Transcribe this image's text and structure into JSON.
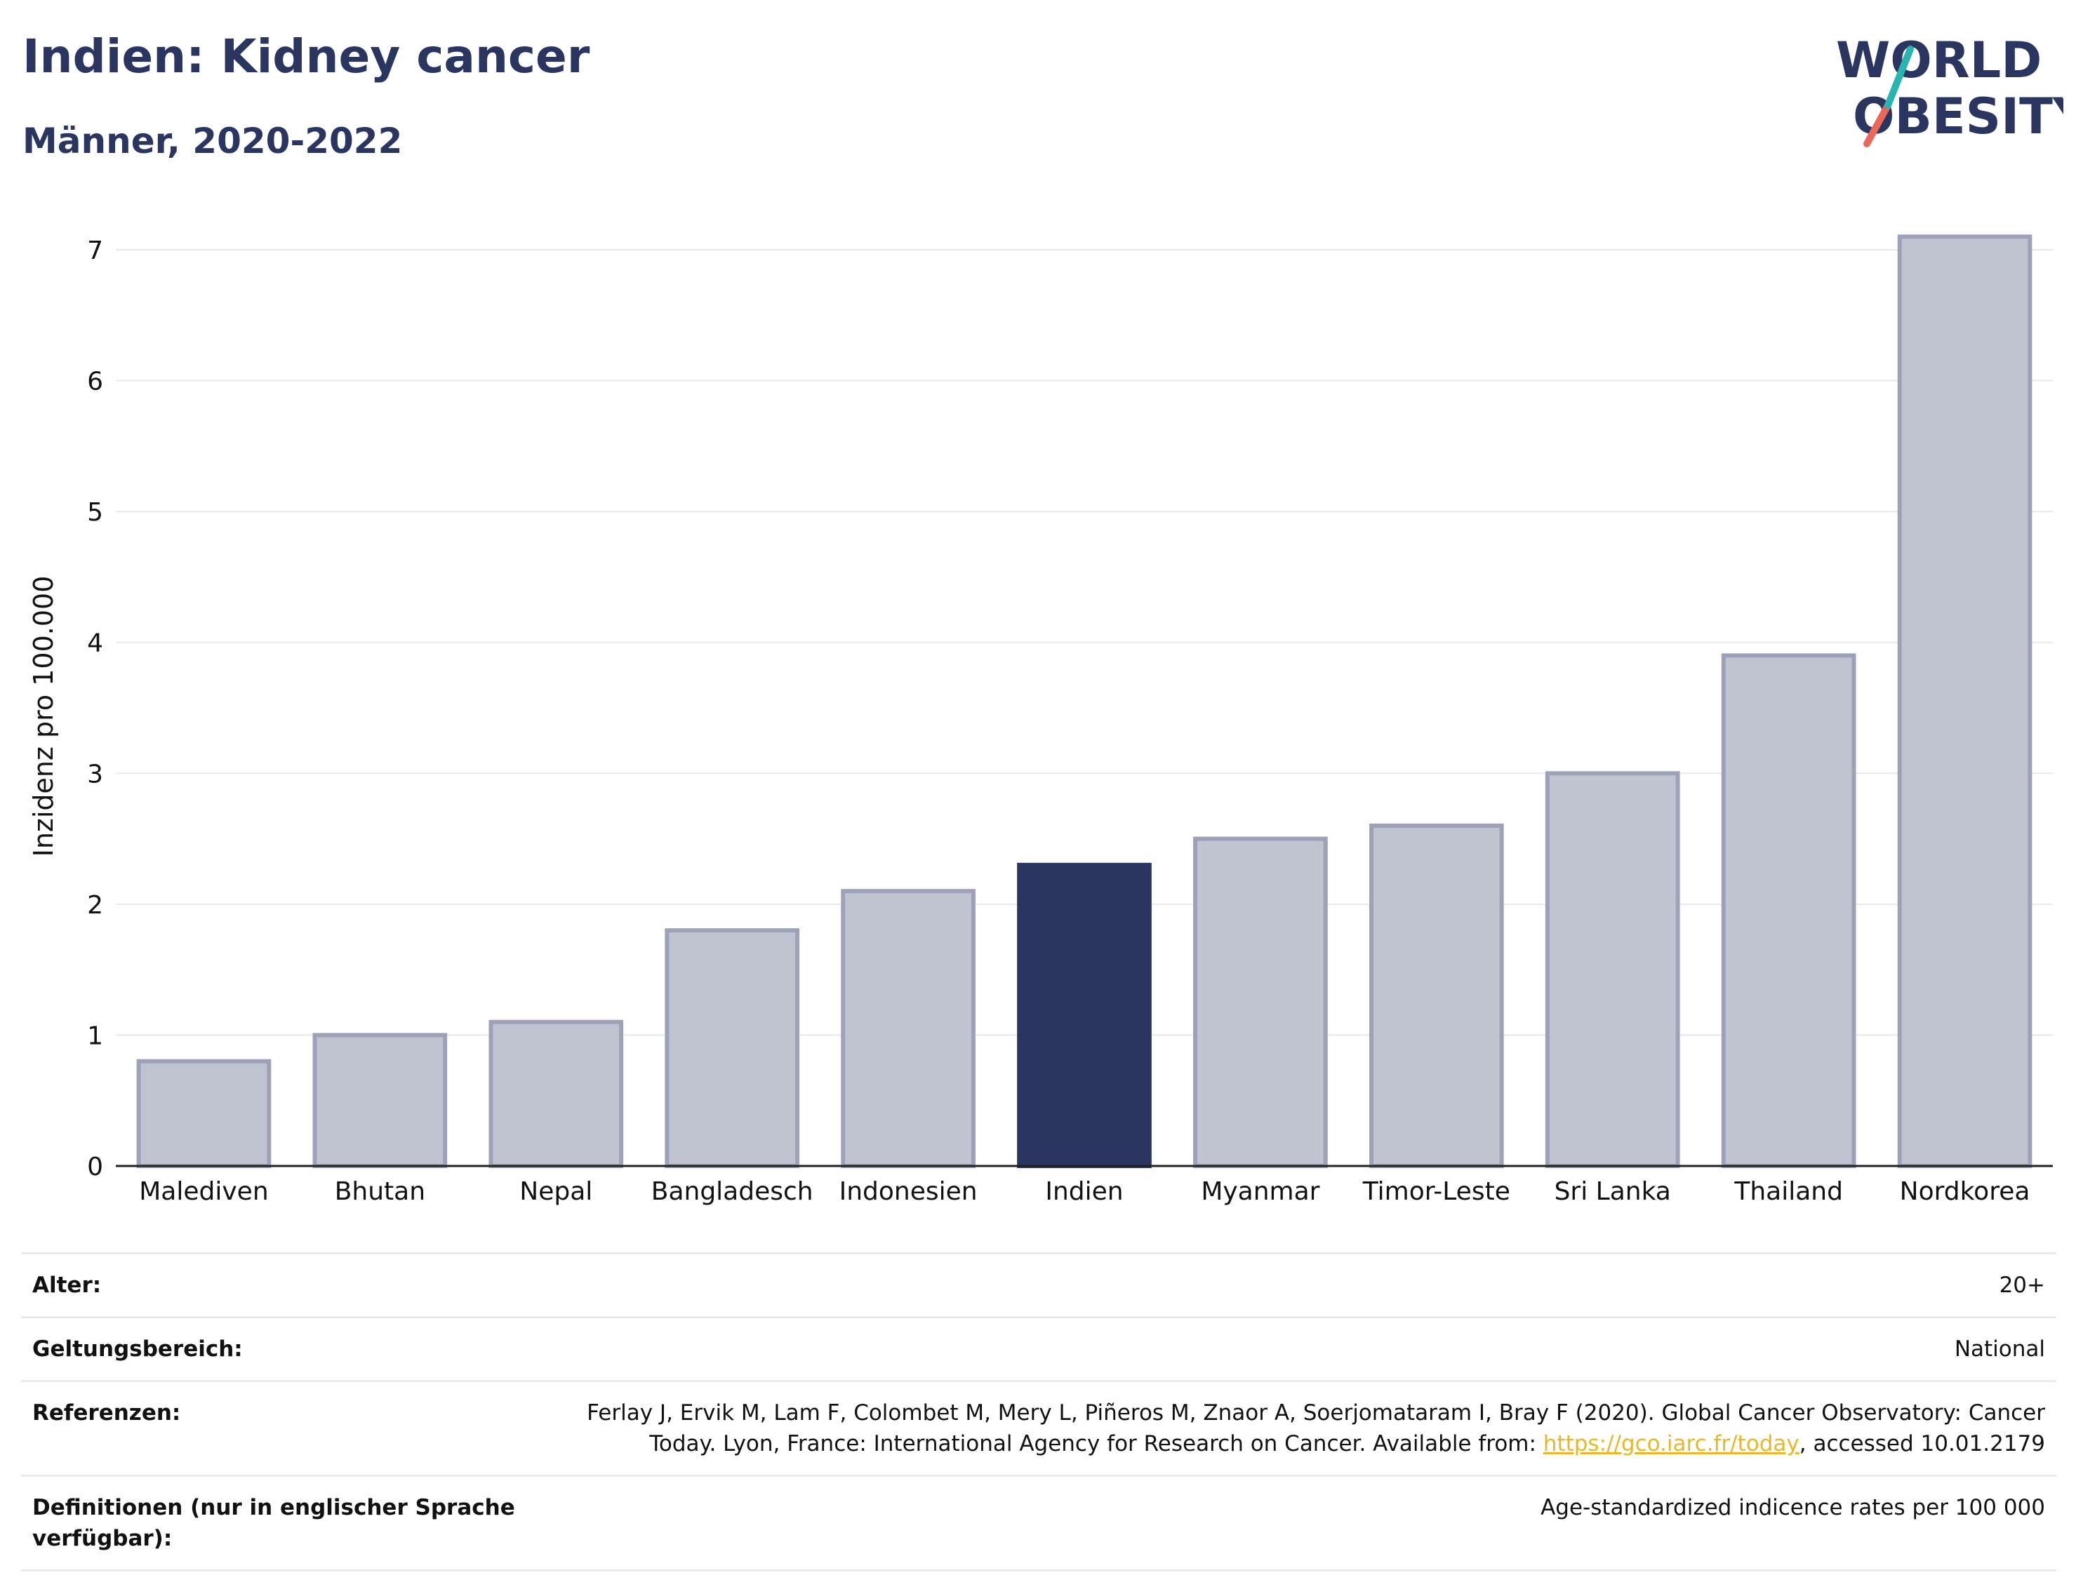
{
  "header": {
    "title": "Indien: Kidney cancer",
    "subtitle": "Männer, 2020-2022"
  },
  "logo": {
    "line1": "WORLD",
    "line2": "OBESITY",
    "accent_teal": "#2bb5b0",
    "accent_red": "#e8685a"
  },
  "chart_data": {
    "type": "bar",
    "title": "Indien: Kidney cancer",
    "subtitle": "Männer, 2020-2022",
    "ylabel": "Inzidenz pro 100.000",
    "xlabel": "",
    "ylim": [
      0,
      7.3
    ],
    "yticks": [
      0,
      1,
      2,
      3,
      4,
      5,
      6,
      7
    ],
    "grid": true,
    "categories": [
      "Malediven",
      "Bhutan",
      "Nepal",
      "Bangladesch",
      "Indonesien",
      "Indien",
      "Myanmar",
      "Timor-Leste",
      "Sri Lanka",
      "Thailand",
      "Nordkorea"
    ],
    "values": [
      0.8,
      1.0,
      1.1,
      1.8,
      2.1,
      2.3,
      2.5,
      2.6,
      3.0,
      3.9,
      7.1
    ],
    "highlight": "Indien",
    "colors": {
      "bar": "#c0c3d0",
      "bar_border": "#9ea2b8",
      "highlight": "#2a3560"
    }
  },
  "info": [
    {
      "key": "Alter:",
      "value": "20+"
    },
    {
      "key": "Geltungsbereich:",
      "value": "National"
    },
    {
      "key": "Referenzen:",
      "value_pre": "Ferlay J, Ervik M, Lam F, Colombet M, Mery L, Piñeros M, Znaor A, Soerjomataram I, Bray F (2020). Global Cancer Observatory: Cancer Today. Lyon, France: International Agency for Research on Cancer. Available from: ",
      "link": "https://gco.iarc.fr/today",
      "value_post": ", accessed 10.01.2179"
    },
    {
      "key": "Definitionen (nur in englischer Sprache verfügbar):",
      "value": "Age-standardized indicence rates per 100 000"
    }
  ]
}
